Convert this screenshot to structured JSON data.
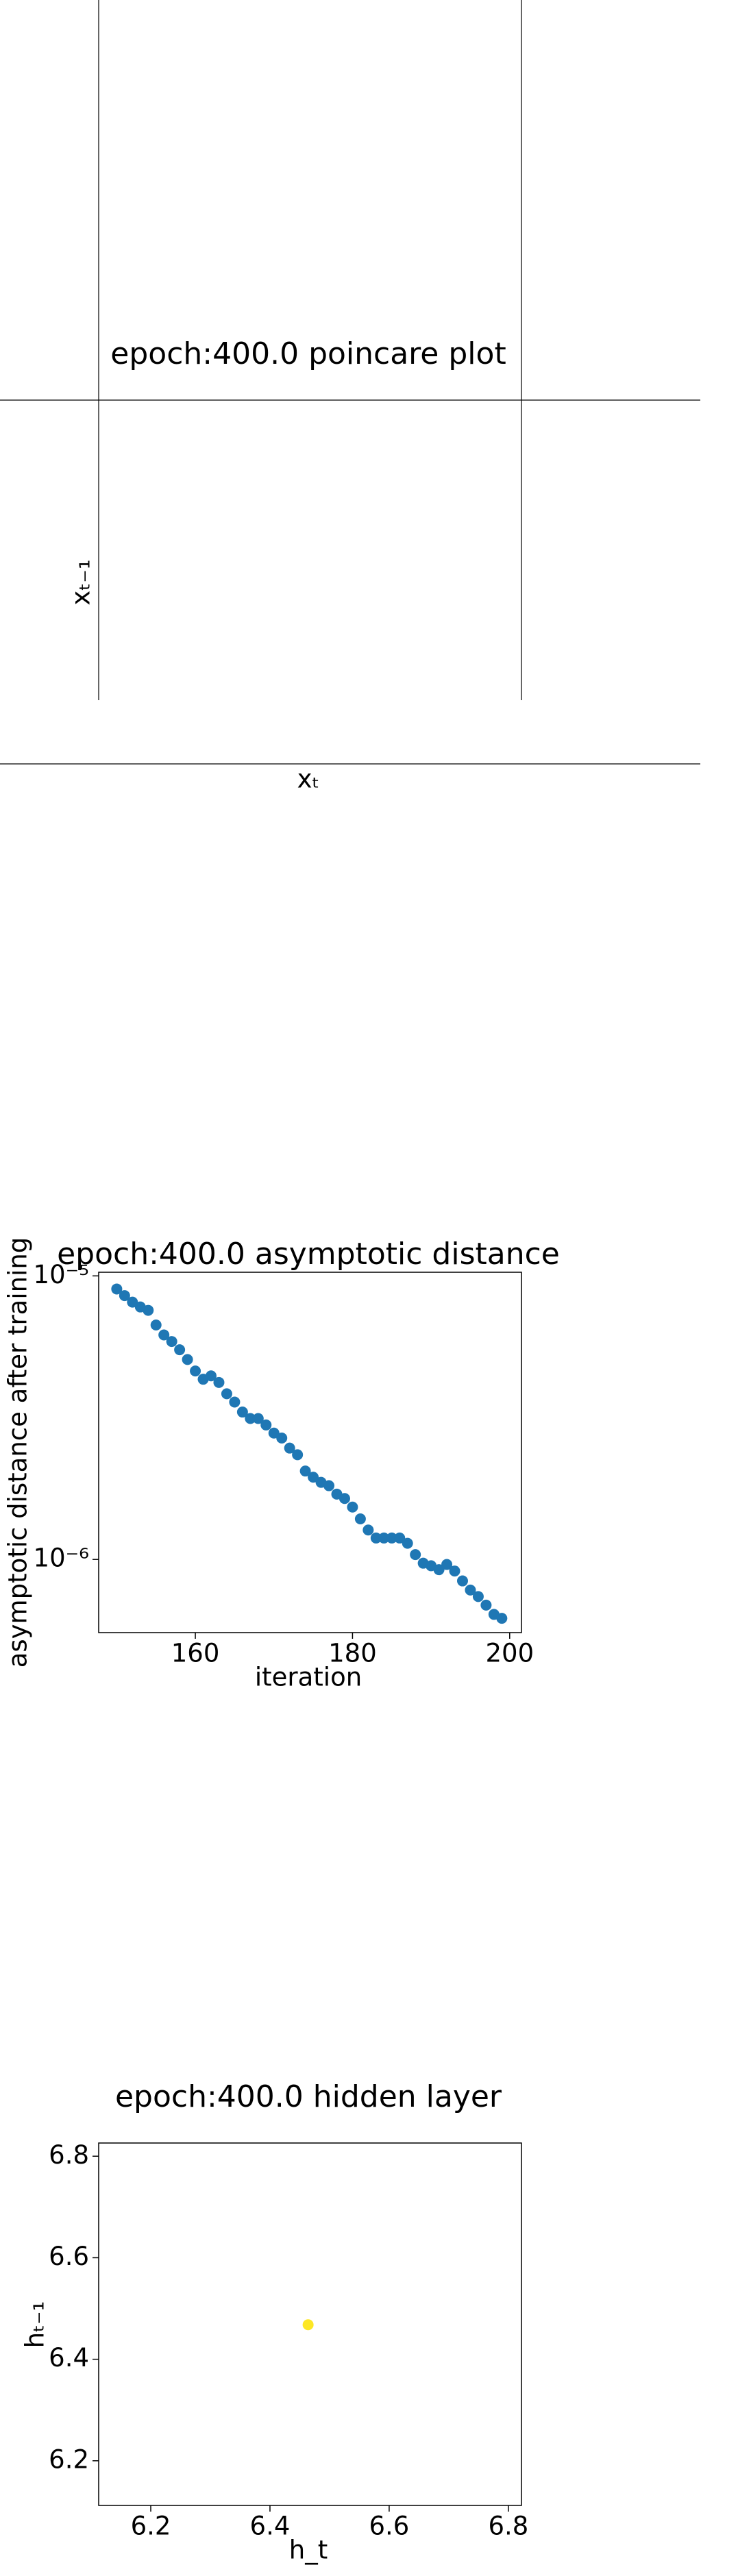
{
  "chart_data": [
    {
      "type": "empty",
      "title": "epoch:400.0 poincare plot",
      "xlabel": "xₜ",
      "ylabel": "xₜ₋₁"
    },
    {
      "type": "scatter",
      "title": "epoch:400.0 asymptotic distance",
      "xlabel": "iteration",
      "ylabel": "asymptotic distance after training",
      "log_y": true,
      "color": "#1f77b4",
      "x": [
        150,
        151,
        152,
        153,
        154,
        155,
        156,
        157,
        158,
        159,
        160,
        161,
        162,
        163,
        164,
        165,
        166,
        167,
        168,
        169,
        170,
        171,
        172,
        173,
        174,
        175,
        176,
        177,
        178,
        179,
        180,
        181,
        182,
        183,
        184,
        185,
        186,
        187,
        188,
        189,
        190,
        191,
        192,
        193,
        194,
        195,
        196,
        197,
        198,
        199
      ],
      "values": [
        8.99e-06,
        8.52e-06,
        8.08e-06,
        7.77e-06,
        7.56e-06,
        6.71e-06,
        6.19e-06,
        5.87e-06,
        5.49e-06,
        5.07e-06,
        4.62e-06,
        4.32e-06,
        4.44e-06,
        4.21e-06,
        3.84e-06,
        3.59e-06,
        3.31e-06,
        3.14e-06,
        3.14e-06,
        2.98e-06,
        2.79e-06,
        2.68e-06,
        2.47e-06,
        2.34e-06,
        2.05e-06,
        1.95e-06,
        1.87e-06,
        1.82e-06,
        1.7e-06,
        1.64e-06,
        1.53e-06,
        1.39e-06,
        1.27e-06,
        1.19e-06,
        1.19e-06,
        1.19e-06,
        1.19e-06,
        1.14e-06,
        1.04e-06,
        9.7e-07,
        9.5e-07,
        9.2e-07,
        9.6e-07,
        9.1e-07,
        8.4e-07,
        7.8e-07,
        7.4e-07,
        6.9e-07,
        6.4e-07,
        6.2e-07
      ],
      "xlim": [
        147.7,
        201.5
      ],
      "ylim": [
        5.52e-07,
        1.03e-05
      ],
      "xticks": [
        160,
        180,
        200
      ],
      "yticks": [
        {
          "value": 1e-06,
          "label": "10⁻⁶"
        },
        {
          "value": 1e-05,
          "label": "10⁻⁵"
        }
      ]
    },
    {
      "type": "scatter",
      "title": "epoch:400.0 hidden layer",
      "xlabel": "h_t",
      "ylabel": "hₜ₋₁",
      "color": "#fde725",
      "x": [
        6.464
      ],
      "values": [
        6.468
      ],
      "xlim": [
        6.1126,
        6.822
      ],
      "ylim": [
        6.112,
        6.826
      ],
      "xticks": [
        6.2,
        6.4,
        6.6,
        6.8
      ],
      "yticks": [
        6.2,
        6.4,
        6.6,
        6.8
      ]
    }
  ]
}
